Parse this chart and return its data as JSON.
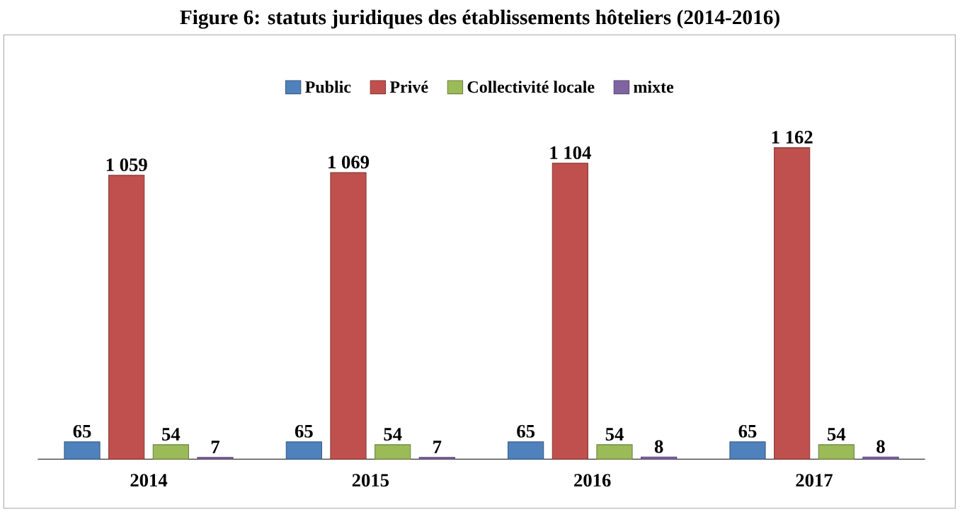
{
  "chart_data": {
    "type": "bar",
    "title": "Figure 6: statuts juridiques des établissements hôteliers (2014-2016)",
    "categories": [
      "2014",
      "2015",
      "2016",
      "2017"
    ],
    "series": [
      {
        "name": "Public",
        "color": "#4f81bd",
        "values": [
          65,
          65,
          65,
          65
        ],
        "value_labels": [
          "65",
          "65",
          "65",
          "65"
        ]
      },
      {
        "name": "Privé",
        "color": "#c0504d",
        "values": [
          1059,
          1069,
          1104,
          1162
        ],
        "value_labels": [
          "1 059",
          "1 069",
          "1 104",
          "1 162"
        ]
      },
      {
        "name": "Collectivité locale",
        "color": "#9bbb59",
        "values": [
          54,
          54,
          54,
          54
        ],
        "value_labels": [
          "54",
          "54",
          "54",
          "54"
        ]
      },
      {
        "name": "mixte",
        "color": "#8064a2",
        "values": [
          7,
          7,
          8,
          8
        ],
        "value_labels": [
          "7",
          "7",
          "8",
          "8"
        ]
      }
    ],
    "legend": "top"
  }
}
